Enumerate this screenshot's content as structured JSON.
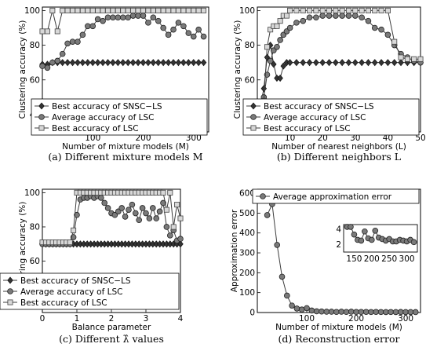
{
  "chart_data": [
    {
      "type": "line",
      "caption": "(a) Different mixture models M",
      "xlabel": "Number of mixture models (M)",
      "ylabel": "Clustering accuracy (%)",
      "xlim": [
        0,
        330
      ],
      "ylim": [
        30,
        102
      ],
      "xticks": [
        100,
        200,
        300
      ],
      "yticks": [
        40,
        60,
        80,
        100
      ],
      "legend_position": "bottom-right",
      "series": [
        {
          "name": "Best accuracy of SNSC−LS",
          "marker": "diamond",
          "x": [
            0,
            10,
            20,
            30,
            40,
            50,
            60,
            70,
            80,
            90,
            100,
            110,
            120,
            130,
            140,
            150,
            160,
            170,
            180,
            190,
            200,
            210,
            220,
            230,
            240,
            250,
            260,
            270,
            280,
            290,
            300,
            310,
            320
          ],
          "values": [
            69,
            69,
            70,
            70,
            70,
            70,
            70,
            70,
            70,
            70,
            70,
            70,
            70,
            70,
            70,
            70,
            70,
            70,
            70,
            70,
            70,
            70,
            70,
            70,
            70,
            70,
            70,
            70,
            70,
            70,
            70,
            70,
            70
          ]
        },
        {
          "name": "Average accuracy of LSC",
          "marker": "circle",
          "x": [
            0,
            10,
            20,
            30,
            40,
            50,
            60,
            70,
            80,
            90,
            100,
            110,
            120,
            130,
            140,
            150,
            160,
            170,
            180,
            190,
            200,
            210,
            220,
            230,
            240,
            250,
            260,
            270,
            280,
            290,
            300,
            310,
            320
          ],
          "values": [
            68,
            67,
            70,
            71,
            75,
            81,
            82,
            82,
            86,
            91,
            91,
            95,
            94,
            96,
            96,
            96,
            96,
            96,
            97,
            97,
            97,
            93,
            96,
            94,
            90,
            86,
            89,
            93,
            91,
            87,
            85,
            89,
            85
          ]
        },
        {
          "name": "Best accuracy of LSC",
          "marker": "square",
          "x": [
            0,
            10,
            20,
            30,
            40,
            50,
            60,
            70,
            80,
            90,
            100,
            110,
            120,
            130,
            140,
            150,
            160,
            170,
            180,
            190,
            200,
            210,
            220,
            230,
            240,
            250,
            260,
            270,
            280,
            290,
            300,
            310,
            320
          ],
          "values": [
            88,
            88,
            100,
            88,
            100,
            100,
            100,
            100,
            100,
            100,
            100,
            100,
            100,
            100,
            100,
            100,
            100,
            100,
            100,
            100,
            100,
            100,
            100,
            100,
            100,
            100,
            100,
            100,
            100,
            100,
            100,
            100,
            100
          ]
        }
      ]
    },
    {
      "type": "line",
      "caption": "(b) Different neighbors L",
      "xlabel": "Number of nearest neighbors (L)",
      "ylabel": "Clustering accuracy (%)",
      "xlim": [
        0,
        50
      ],
      "ylim": [
        30,
        102
      ],
      "xticks": [
        10,
        20,
        30,
        40,
        50
      ],
      "yticks": [
        40,
        60,
        80,
        100
      ],
      "legend_position": "bottom-right",
      "series": [
        {
          "name": "Best accuracy of SNSC−LS",
          "marker": "diamond",
          "x": [
            1,
            2,
            3,
            4,
            5,
            6,
            7,
            8,
            9,
            10,
            12,
            14,
            16,
            18,
            20,
            22,
            24,
            26,
            28,
            30,
            32,
            34,
            36,
            38,
            40,
            42,
            44,
            46,
            48,
            50
          ],
          "values": [
            46,
            55,
            73,
            80,
            69,
            61,
            61,
            68,
            70,
            70,
            70,
            70,
            70,
            70,
            70,
            70,
            70,
            70,
            70,
            70,
            70,
            70,
            70,
            70,
            70,
            70,
            70,
            70,
            70,
            70
          ]
        },
        {
          "name": "Average accuracy of LSC",
          "marker": "circle",
          "x": [
            1,
            2,
            3,
            4,
            5,
            6,
            7,
            8,
            9,
            10,
            12,
            14,
            16,
            18,
            20,
            22,
            24,
            26,
            28,
            30,
            32,
            34,
            36,
            38,
            40,
            42,
            44,
            46,
            48,
            50
          ],
          "values": [
            43,
            50,
            63,
            71,
            77,
            79,
            83,
            86,
            88,
            90,
            93,
            94,
            96,
            96,
            97,
            97,
            97,
            97,
            97,
            97,
            96,
            94,
            90,
            89,
            86,
            80,
            75,
            73,
            71,
            70
          ]
        },
        {
          "name": "Best accuracy of LSC",
          "marker": "square",
          "x": [
            1,
            2,
            3,
            4,
            5,
            6,
            7,
            8,
            9,
            10,
            12,
            14,
            16,
            18,
            20,
            22,
            24,
            26,
            28,
            30,
            32,
            34,
            36,
            38,
            40,
            42,
            44,
            46,
            48,
            50
          ],
          "values": [
            44,
            48,
            79,
            89,
            91,
            91,
            94,
            97,
            97,
            100,
            100,
            100,
            100,
            100,
            100,
            100,
            100,
            100,
            100,
            100,
            100,
            100,
            100,
            100,
            100,
            82,
            73,
            72,
            72,
            72
          ]
        }
      ]
    },
    {
      "type": "line",
      "caption": "(c) Different λ̂ values",
      "xlabel": "Balance parameter",
      "ylabel": "Clustering accuracy (%)",
      "xlim": [
        0,
        4
      ],
      "ylim": [
        30,
        102
      ],
      "xticks": [
        0,
        1,
        2,
        3,
        4
      ],
      "yticks": [
        40,
        60,
        80,
        100
      ],
      "legend_position": "bottom-right",
      "series": [
        {
          "name": "Best accuracy of SNSC−LS",
          "marker": "diamond",
          "x": [
            0,
            0.1,
            0.2,
            0.3,
            0.4,
            0.5,
            0.6,
            0.7,
            0.8,
            0.9,
            1.0,
            1.1,
            1.2,
            1.3,
            1.4,
            1.5,
            1.6,
            1.7,
            1.8,
            1.9,
            2.0,
            2.1,
            2.2,
            2.3,
            2.4,
            2.5,
            2.6,
            2.7,
            2.8,
            2.9,
            3.0,
            3.1,
            3.2,
            3.3,
            3.4,
            3.5,
            3.6,
            3.7,
            3.8,
            3.9,
            4.0
          ],
          "values": [
            70,
            70,
            70,
            70,
            70,
            70,
            70,
            70,
            70,
            70,
            70,
            70,
            70,
            70,
            70,
            70,
            70,
            70,
            70,
            70,
            70,
            70,
            70,
            70,
            70,
            70,
            70,
            70,
            70,
            70,
            70,
            70,
            70,
            70,
            70,
            70,
            70,
            70,
            70,
            70,
            70
          ]
        },
        {
          "name": "Average accuracy of LSC",
          "marker": "circle",
          "x": [
            0,
            0.1,
            0.2,
            0.3,
            0.4,
            0.5,
            0.6,
            0.7,
            0.8,
            0.9,
            1.0,
            1.1,
            1.2,
            1.3,
            1.4,
            1.5,
            1.6,
            1.7,
            1.8,
            1.9,
            2.0,
            2.1,
            2.2,
            2.3,
            2.4,
            2.5,
            2.6,
            2.7,
            2.8,
            2.9,
            3.0,
            3.1,
            3.2,
            3.3,
            3.4,
            3.5,
            3.6,
            3.7,
            3.8,
            3.9,
            4.0
          ],
          "values": [
            70,
            70,
            70,
            70,
            70,
            70,
            70,
            70,
            70,
            74,
            87,
            96,
            97,
            97,
            98,
            97,
            98,
            97,
            94,
            91,
            88,
            87,
            89,
            91,
            86,
            90,
            93,
            88,
            84,
            91,
            88,
            85,
            91,
            85,
            89,
            94,
            80,
            75,
            78,
            72,
            73
          ]
        },
        {
          "name": "Best accuracy of LSC",
          "marker": "square",
          "x": [
            0,
            0.1,
            0.2,
            0.3,
            0.4,
            0.5,
            0.6,
            0.7,
            0.8,
            0.9,
            1.0,
            1.1,
            1.2,
            1.3,
            1.4,
            1.5,
            1.6,
            1.7,
            1.8,
            1.9,
            2.0,
            2.1,
            2.2,
            2.3,
            2.4,
            2.5,
            2.6,
            2.7,
            2.8,
            2.9,
            3.0,
            3.1,
            3.2,
            3.3,
            3.4,
            3.5,
            3.6,
            3.7,
            3.8,
            3.9,
            4.0
          ],
          "values": [
            71,
            71,
            71,
            71,
            71,
            71,
            71,
            71,
            71,
            78,
            100,
            100,
            100,
            100,
            100,
            100,
            100,
            100,
            100,
            100,
            100,
            100,
            100,
            100,
            100,
            100,
            100,
            100,
            100,
            100,
            100,
            100,
            100,
            100,
            100,
            100,
            90,
            100,
            80,
            93,
            85
          ]
        }
      ]
    },
    {
      "type": "line",
      "caption": "(d) Reconstruction error",
      "xlabel": "Number of mixture models (M)",
      "ylabel": "Approximation error",
      "xlim": [
        0,
        330
      ],
      "ylim": [
        0,
        620
      ],
      "xticks": [
        100,
        200,
        300
      ],
      "yticks": [
        0,
        100,
        200,
        300,
        400,
        500,
        600
      ],
      "legend_position": "top-right",
      "series": [
        {
          "name": "Average approximation error",
          "marker": "circle",
          "x": [
            20,
            30,
            40,
            50,
            60,
            70,
            80,
            90,
            100,
            110,
            120,
            130,
            140,
            150,
            160,
            170,
            180,
            190,
            200,
            210,
            220,
            230,
            240,
            250,
            260,
            270,
            280,
            290,
            300,
            310,
            320
          ],
          "values": [
            490,
            545,
            340,
            180,
            85,
            35,
            20,
            15,
            22,
            10,
            6,
            5,
            4,
            4,
            3,
            4,
            3,
            4,
            3,
            3,
            3,
            2.5,
            3,
            2.5,
            2.3,
            2.5,
            2.4,
            2.6,
            2.3,
            2.4,
            2.2
          ]
        }
      ],
      "inset": {
        "xlim": [
          120,
          330
        ],
        "ylim": [
          1,
          4.6
        ],
        "xticks": [
          150,
          200,
          250,
          300
        ],
        "yticks": [
          2,
          4
        ],
        "x": [
          130,
          140,
          150,
          160,
          170,
          180,
          190,
          200,
          210,
          220,
          230,
          240,
          250,
          260,
          270,
          280,
          290,
          300,
          310,
          320
        ],
        "values": [
          4.3,
          4.3,
          3.3,
          2.6,
          2.5,
          3.7,
          2.8,
          2.6,
          3.8,
          2.9,
          2.7,
          2.5,
          2.7,
          2.4,
          2.4,
          2.6,
          2.5,
          2.4,
          2.6,
          2.3
        ]
      }
    }
  ]
}
